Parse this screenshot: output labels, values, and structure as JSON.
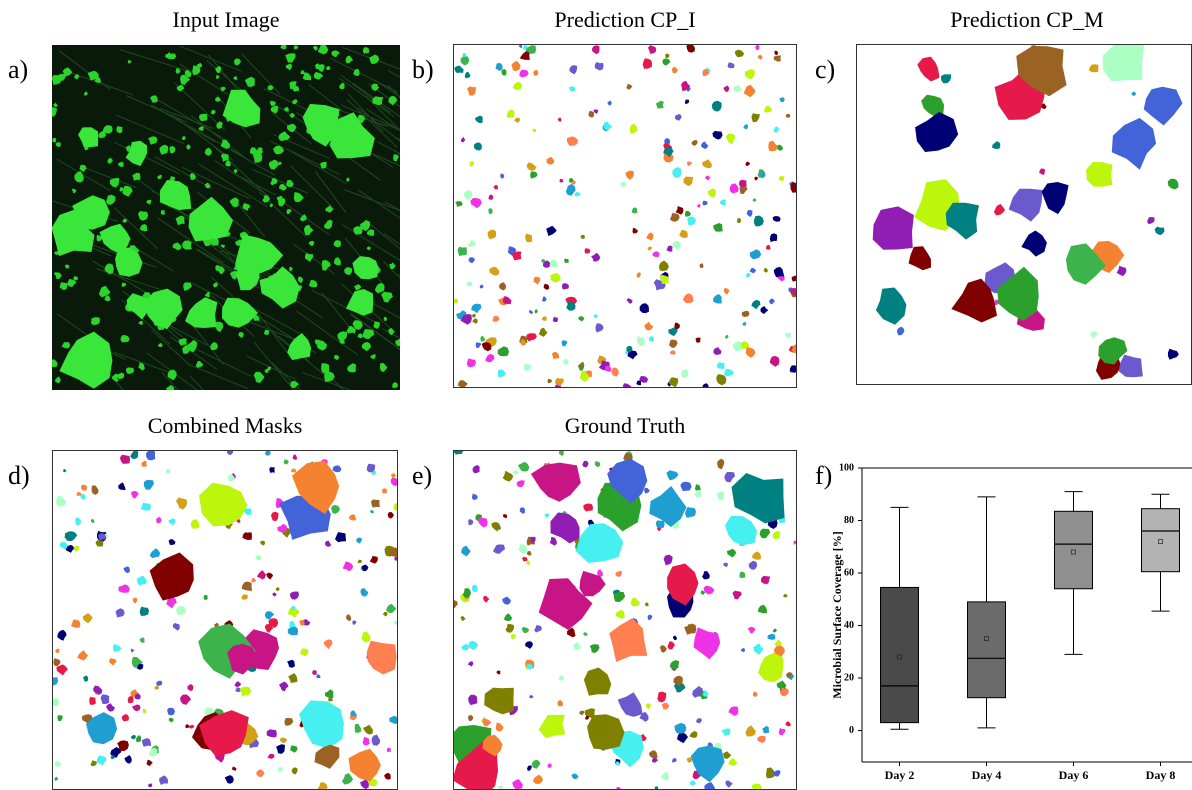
{
  "panels": [
    {
      "label": "a)",
      "title": "Input Image"
    },
    {
      "label": "b)",
      "title": "Prediction CP_I"
    },
    {
      "label": "c)",
      "title": "Prediction CP_M"
    },
    {
      "label": "d)",
      "title": "Combined Masks"
    },
    {
      "label": "e)",
      "title": "Ground Truth"
    }
  ],
  "chart_data": {
    "type": "box",
    "panel_label": "f)",
    "y_label": "Microbial Surface Coverage  [%]",
    "categories": [
      "Day 2",
      "Day 4",
      "Day 6",
      "Day 8"
    ],
    "boxes": [
      {
        "min": 0.5,
        "q1": 3,
        "median": 17,
        "q3": 54.5,
        "max": 85,
        "mean": 28,
        "color": "#4a4a4a"
      },
      {
        "min": 1,
        "q1": 12.5,
        "median": 27.5,
        "q3": 49,
        "max": 89,
        "mean": 35,
        "color": "#6b6b6b"
      },
      {
        "min": 29,
        "q1": 54,
        "median": 71,
        "q3": 83.5,
        "max": 91,
        "mean": 68,
        "color": "#8f8f8f"
      },
      {
        "min": 45.5,
        "q1": 60.5,
        "median": 76,
        "q3": 84.5,
        "max": 90,
        "mean": 72,
        "color": "#b3b3b3"
      }
    ],
    "ylim": [
      -12,
      100
    ],
    "yticks": [
      0,
      20,
      40,
      60,
      80,
      100
    ]
  }
}
